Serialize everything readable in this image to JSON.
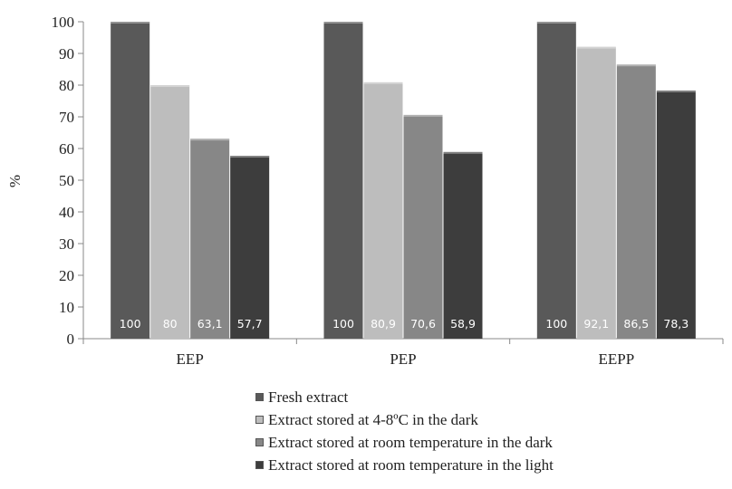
{
  "chart_data": {
    "type": "bar",
    "ylabel": "%",
    "xlabel": "",
    "ylim": [
      0,
      100
    ],
    "yticks": [
      0,
      10,
      20,
      30,
      40,
      50,
      60,
      70,
      80,
      90,
      100
    ],
    "categories": [
      "EEP",
      "PEP",
      "EEPP"
    ],
    "series": [
      {
        "name": "Fresh extract",
        "values": [
          100,
          100,
          100
        ],
        "labels": [
          "100",
          "100",
          "100"
        ],
        "color": "#595959"
      },
      {
        "name": "Extract stored at 4-8ºC in the dark",
        "values": [
          80,
          80.9,
          92.1
        ],
        "labels": [
          "80",
          "80,9",
          "92,1"
        ],
        "color": "#bdbdbd"
      },
      {
        "name": "Extract stored at room temperature in the dark",
        "values": [
          63.1,
          70.6,
          86.5
        ],
        "labels": [
          "63,1",
          "70,6",
          "86,5"
        ],
        "color": "#878787"
      },
      {
        "name": "Extract stored at room temperature in the light",
        "values": [
          57.7,
          58.9,
          78.3
        ],
        "labels": [
          "57,7",
          "58,9",
          "78,3"
        ],
        "color": "#3d3d3d"
      }
    ],
    "grid": false,
    "legend_position": "bottom"
  }
}
